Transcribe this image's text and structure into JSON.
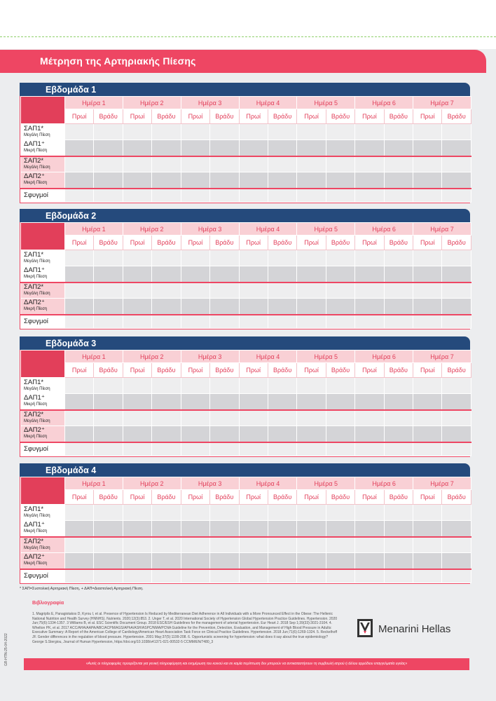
{
  "title": "Μέτρηση της Αρτηριακής  Πίεσης",
  "weeks": [
    {
      "label": "Εβδομάδα 1"
    },
    {
      "label": "Εβδομάδα 2"
    },
    {
      "label": "Εβδομάδα 3"
    },
    {
      "label": "Εβδομάδα 4"
    }
  ],
  "days": [
    "Ημέρα 1",
    "Ημέρα 2",
    "Ημέρα 3",
    "Ημέρα 4",
    "Ημέρα 5",
    "Ημέρα 6",
    "Ημέρα 7"
  ],
  "slots": {
    "morning": "Πρωί",
    "evening": "Βράδυ"
  },
  "rows": [
    {
      "big": "ΣΑΠ1*",
      "small": "Μεγάλη Πίεση"
    },
    {
      "big": "ΔΑΠ1⁺",
      "small": "Μικρή Πίεση"
    },
    {
      "big": "ΣΑΠ2*",
      "small": "Μεγάλη Πίεση"
    },
    {
      "big": "ΔΑΠ2⁺",
      "small": "Μικρή Πίεση"
    }
  ],
  "pulse_label": "Σφυγμοί",
  "footnote": "* ΣΑΠ=Συστολική Αρτηριακή Πίεση, + ΔΑΠ=Διαστολική Αρτηριακή Πίεση.",
  "references_title": "Βιβλιογραφία",
  "references": "1. Magriplis E, Panagiotakos D, Kyrou I, et al. Presence of Hypertension Is Reduced by Mediterranean Diet Adherence in All Individuals with a More Pronounced Effect in the Obese: The Hellenic National Nutrition and Health Survey (HNNHS). Nutrients. 2020;12(3):853. 2. Unger T, et al. 2020 International Society of Hypertension Global Hypertension Practice Guidelines. Hypertension. 2020 Jun;75(6):1334-1357. 3 Williams B, et al. ESC Scientific Document Group. 2018 ESC/ESH Guidelines for the management of arterial hypertension. Eur Heart J. 2018 Sep 1;39(33):3021-3104. 4. Whelton PK, et al. 2017 ACC/AHA/AAPA/ABC/ACPM/AGS/APhA/ASH/ASPC/NMA/PCNA Guideline for the Prevention, Detection, Evaluation, and Management of High Blood Pressure in Adults: Executive Summary: A Report of the American College of Cardiology/American Heart Association Task Force on Clinical Practice Guidelines. Hypertension. 2018 Jun;71(6):1269-1324. 5. Reckelhoff JF. Gender differences in the regulation of blood pressure. Hypertension. 2001 May;37(5):1199-208. 6. Opportunistic screening for hypertension: what does it say about the true epidemiology? George S.Stergiou, Journal of Human Hypertension, https://doi.org/10.1038/s41371-021-00532-5    CCMM/EN/7480_3",
  "doc_code": "GR-HTN-25-04-2022",
  "brand": "Menarini Hellas",
  "disclaimer": "«Αυτές οι πληροφορίες προορίζονται για γενική πληροφόρηση και ενημέρωση του κοινού και σε καμία περίπτωση δεν μπορούν να αντικαταστήσουν τη συμβουλή ιατρού ή άλλου αρμόδιου επαγγελματία υγείας»",
  "colors": {
    "accent": "#ee4663",
    "navy": "#254a7c",
    "pink_light": "#f9d0d5"
  }
}
